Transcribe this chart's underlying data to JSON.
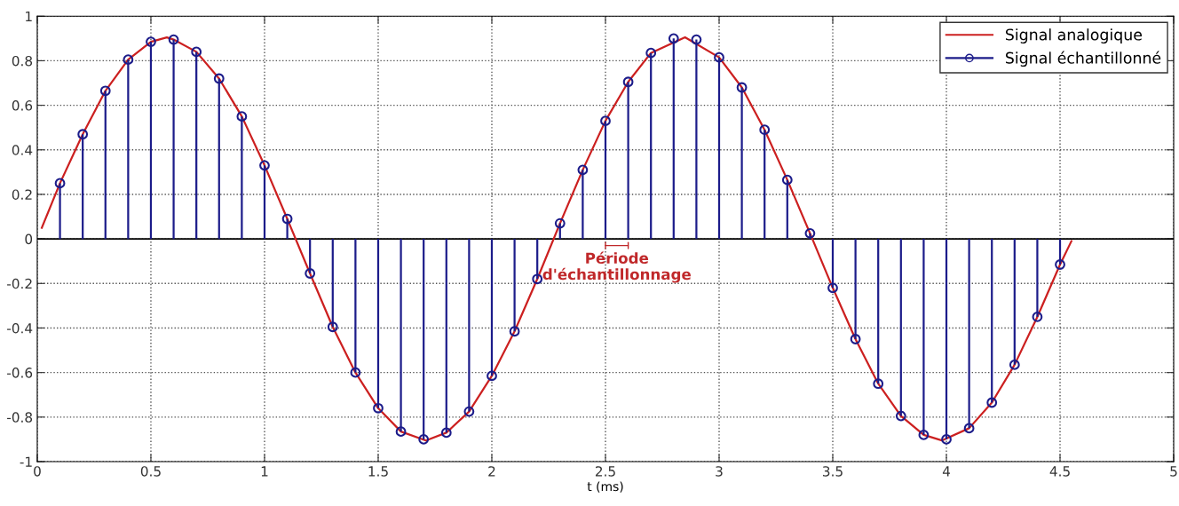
{
  "chart_data": {
    "type": "line",
    "xlabel": "t (ms)",
    "xlim": [
      0,
      5
    ],
    "ylim": [
      -1,
      1
    ],
    "xticks": [
      0,
      0.5,
      1,
      1.5,
      2,
      2.5,
      3,
      3.5,
      4,
      4.5,
      5
    ],
    "yticks": [
      -1,
      -0.8,
      -0.6,
      -0.4,
      -0.2,
      0,
      0.2,
      0.4,
      0.6,
      0.8,
      1
    ],
    "grid": true,
    "legend": "top right",
    "line_style": "solid",
    "series": [
      {
        "name": "Signal analogique",
        "color": "#cc2020",
        "marker": "none",
        "x": [
          0.02,
          0.1,
          0.2,
          0.3,
          0.4,
          0.5,
          0.57,
          0.6,
          0.7,
          0.8,
          0.9,
          1.0,
          1.1,
          1.2,
          1.3,
          1.4,
          1.5,
          1.6,
          1.71,
          1.8,
          1.9,
          2.0,
          2.1,
          2.2,
          2.3,
          2.4,
          2.5,
          2.6,
          2.7,
          2.85,
          3.0,
          3.1,
          3.2,
          3.3,
          3.4,
          3.5,
          3.6,
          3.7,
          3.8,
          3.9,
          3.98,
          4.1,
          4.2,
          4.3,
          4.4,
          4.5,
          4.55
        ],
        "values": [
          0.05,
          0.25,
          0.47,
          0.665,
          0.805,
          0.885,
          0.905,
          0.895,
          0.84,
          0.72,
          0.55,
          0.33,
          0.09,
          -0.155,
          -0.395,
          -0.6,
          -0.76,
          -0.865,
          -0.905,
          -0.87,
          -0.775,
          -0.615,
          -0.415,
          -0.18,
          0.07,
          0.31,
          0.53,
          0.705,
          0.835,
          0.905,
          0.815,
          0.68,
          0.49,
          0.265,
          0.025,
          -0.22,
          -0.45,
          -0.65,
          -0.795,
          -0.88,
          -0.905,
          -0.85,
          -0.735,
          -0.565,
          -0.35,
          -0.115,
          -0.01
        ]
      },
      {
        "name": "Signal échantillonné",
        "type": "lollipop",
        "color": "#1c1c8a",
        "marker": "circle",
        "x": [
          0.1,
          0.2,
          0.3,
          0.4,
          0.5,
          0.6,
          0.7,
          0.8,
          0.9,
          1.0,
          1.1,
          1.2,
          1.3,
          1.4,
          1.5,
          1.6,
          1.7,
          1.8,
          1.9,
          2.0,
          2.1,
          2.2,
          2.3,
          2.4,
          2.5,
          2.6,
          2.7,
          2.8,
          2.9,
          3.0,
          3.1,
          3.2,
          3.3,
          3.4,
          3.5,
          3.6,
          3.7,
          3.8,
          3.9,
          4.0,
          4.1,
          4.2,
          4.3,
          4.4,
          4.5
        ],
        "values": [
          0.25,
          0.47,
          0.665,
          0.805,
          0.885,
          0.895,
          0.84,
          0.72,
          0.55,
          0.33,
          0.09,
          -0.155,
          -0.395,
          -0.6,
          -0.76,
          -0.865,
          -0.9,
          -0.87,
          -0.775,
          -0.615,
          -0.415,
          -0.18,
          0.07,
          0.31,
          0.53,
          0.705,
          0.835,
          0.9,
          0.895,
          0.815,
          0.68,
          0.49,
          0.265,
          0.025,
          -0.22,
          -0.45,
          -0.65,
          -0.795,
          -0.88,
          -0.9,
          -0.85,
          -0.735,
          -0.565,
          -0.35,
          -0.115
        ]
      }
    ],
    "ref_lines": [
      {
        "axis": "y",
        "value": 0,
        "color": "#000000"
      }
    ],
    "annotations": [
      "Période\nd'échantillonnage"
    ]
  }
}
